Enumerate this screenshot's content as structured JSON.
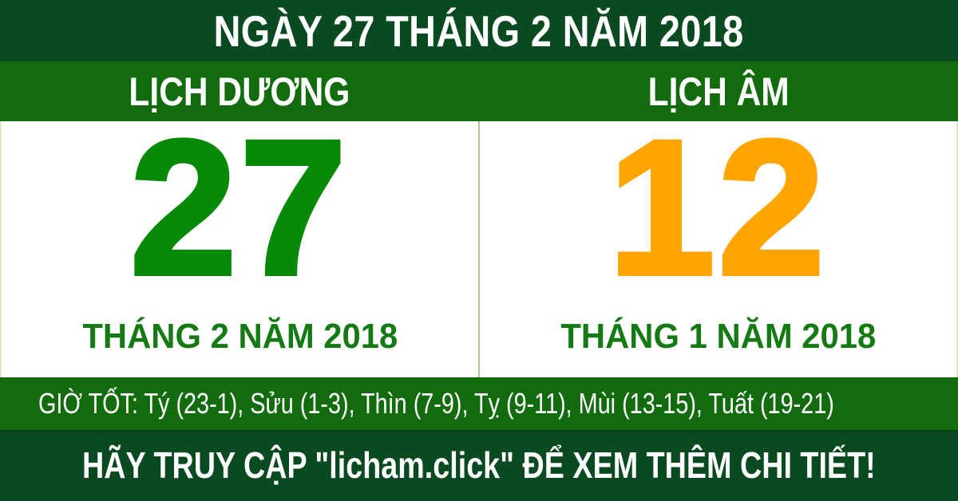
{
  "colors": {
    "dark_green": "#0a4a21",
    "medium_green": "#126c0d",
    "solar_day_green": "#078a07",
    "lunar_day_orange": "#ffa502",
    "month_label_green": "#147a14",
    "divider_light_green": "#a8d295",
    "text_white": "#ffffff"
  },
  "header": {
    "title": "NGÀY 27 THÁNG 2 NĂM 2018"
  },
  "tabs": {
    "solar_label": "LỊCH DƯƠNG",
    "lunar_label": "LỊCH ÂM"
  },
  "solar": {
    "day": "27",
    "month_year": "THÁNG 2 NĂM 2018"
  },
  "lunar": {
    "day": "12",
    "month_year": "THÁNG 1 NĂM 2018"
  },
  "good_hours": {
    "text": "GIỜ TỐT: Tý (23-1), Sửu (1-3), Thìn (7-9), Tỵ (9-11), Mùi (13-15), Tuất (19-21)"
  },
  "footer": {
    "cta": "HÃY TRUY CẬP \"licham.click\" ĐỂ XEM THÊM CHI TIẾT!"
  }
}
